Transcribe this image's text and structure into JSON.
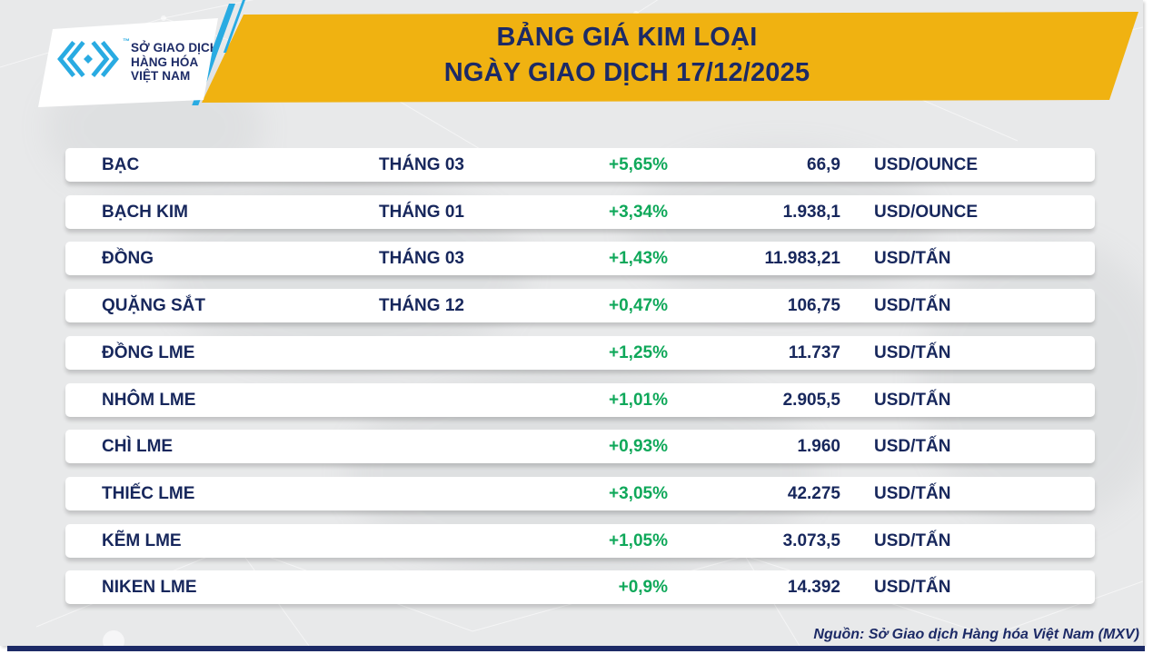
{
  "header": {
    "logo": {
      "glyph": "mxv-chevrons",
      "tm": "™",
      "lines": [
        "SỞ GIAO DỊCH",
        "HÀNG HÓA",
        "VIỆT NAM"
      ]
    },
    "title_line1": "BẢNG GIÁ KIM LOẠI",
    "title_line2": "NGÀY GIAO DỊCH 17/12/2025"
  },
  "chart_data": {
    "type": "table",
    "title": "BẢNG GIÁ KIM LOẠI",
    "subtitle": "NGÀY GIAO DỊCH 17/12/2025",
    "rows": [
      {
        "name": "BẠC",
        "month": "THÁNG 03",
        "change": "+5,65%",
        "price": "66,9",
        "unit": "USD/OUNCE"
      },
      {
        "name": "BẠCH KIM",
        "month": "THÁNG 01",
        "change": "+3,34%",
        "price": "1.938,1",
        "unit": "USD/OUNCE"
      },
      {
        "name": "ĐỒNG",
        "month": "THÁNG 03",
        "change": "+1,43%",
        "price": "11.983,21",
        "unit": "USD/TẤN"
      },
      {
        "name": "QUẶNG SẮT",
        "month": "THÁNG 12",
        "change": "+0,47%",
        "price": "106,75",
        "unit": "USD/TẤN"
      },
      {
        "name": "ĐỒNG LME",
        "month": "",
        "change": "+1,25%",
        "price": "11.737",
        "unit": "USD/TẤN"
      },
      {
        "name": "NHÔM LME",
        "month": "",
        "change": "+1,01%",
        "price": "2.905,5",
        "unit": "USD/TẤN"
      },
      {
        "name": "CHÌ LME",
        "month": "",
        "change": "+0,93%",
        "price": "1.960",
        "unit": "USD/TẤN"
      },
      {
        "name": "THIẾC LME",
        "month": "",
        "change": "+3,05%",
        "price": "42.275",
        "unit": "USD/TẤN"
      },
      {
        "name": "KẼM LME",
        "month": "",
        "change": "+1,05%",
        "price": "3.073,5",
        "unit": "USD/TẤN"
      },
      {
        "name": "NIKEN LME",
        "month": "",
        "change": "+0,9%",
        "price": "14.392",
        "unit": "USD/TẤN"
      }
    ]
  },
  "footer": {
    "source": "Nguồn: Sở Giao dịch Hàng hóa Việt Nam (MXV)"
  },
  "colors": {
    "banner": "#F0B211",
    "navy": "#1C2A66",
    "row_text": "#17275C",
    "green": "#0FA85A",
    "cyan": "#29ABE2",
    "background": "#E8E9EA"
  }
}
